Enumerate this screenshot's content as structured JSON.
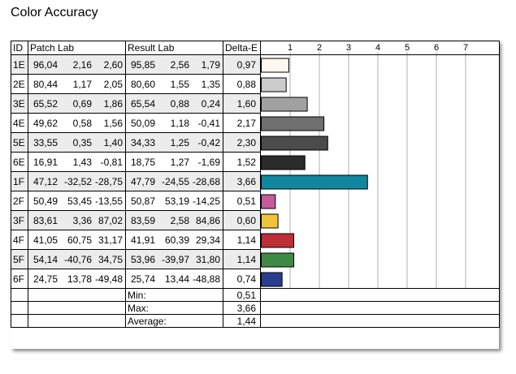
{
  "title": "Color Accuracy",
  "headers": {
    "id": "ID",
    "patch": "Patch Lab",
    "result": "Result Lab",
    "delta": "Delta-E"
  },
  "chart_data": {
    "type": "bar",
    "orientation": "horizontal",
    "xlim": [
      0,
      7
    ],
    "xticks": [
      "1",
      "2",
      "3",
      "4",
      "5",
      "6",
      "7"
    ],
    "grid": true,
    "categories": [
      "1E",
      "2E",
      "3E",
      "4E",
      "5E",
      "6E",
      "1F",
      "2F",
      "3F",
      "4F",
      "5F",
      "6F"
    ],
    "values": [
      0.97,
      0.88,
      1.6,
      2.17,
      2.3,
      1.52,
      3.66,
      0.51,
      0.6,
      1.14,
      1.14,
      0.74
    ],
    "colors": [
      "#fcf7f3",
      "#cbcbcb",
      "#a1a1a1",
      "#6f6f6f",
      "#4b4b4b",
      "#2b2b2b",
      "#11869f",
      "#c65a9c",
      "#f0c43a",
      "#bd2e37",
      "#3d8a45",
      "#283d8e"
    ]
  },
  "rows": [
    {
      "id": "1E",
      "patch": [
        "96,04",
        "2,16",
        "2,60"
      ],
      "result": [
        "95,85",
        "2,56",
        "1,79"
      ],
      "delta": "0,97"
    },
    {
      "id": "2E",
      "patch": [
        "80,44",
        "1,17",
        "2,05"
      ],
      "result": [
        "80,60",
        "1,55",
        "1,35"
      ],
      "delta": "0,88"
    },
    {
      "id": "3E",
      "patch": [
        "65,52",
        "0,69",
        "1,86"
      ],
      "result": [
        "65,54",
        "0,88",
        "0,24"
      ],
      "delta": "1,60"
    },
    {
      "id": "4E",
      "patch": [
        "49,62",
        "0,58",
        "1,56"
      ],
      "result": [
        "50,09",
        "1,18",
        "-0,41"
      ],
      "delta": "2,17"
    },
    {
      "id": "5E",
      "patch": [
        "33,55",
        "0,35",
        "1,40"
      ],
      "result": [
        "34,33",
        "1,25",
        "-0,42"
      ],
      "delta": "2,30"
    },
    {
      "id": "6E",
      "patch": [
        "16,91",
        "1,43",
        "-0,81"
      ],
      "result": [
        "18,75",
        "1,27",
        "-1,69"
      ],
      "delta": "1,52"
    },
    {
      "id": "1F",
      "patch": [
        "47,12",
        "-32,52",
        "-28,75"
      ],
      "result": [
        "47,79",
        "-24,55",
        "-28,68"
      ],
      "delta": "3,66"
    },
    {
      "id": "2F",
      "patch": [
        "50,49",
        "53,45",
        "-13,55"
      ],
      "result": [
        "50,87",
        "53,19",
        "-14,25"
      ],
      "delta": "0,51"
    },
    {
      "id": "3F",
      "patch": [
        "83,61",
        "3,36",
        "87,02"
      ],
      "result": [
        "83,59",
        "2,58",
        "84,86"
      ],
      "delta": "0,60"
    },
    {
      "id": "4F",
      "patch": [
        "41,05",
        "60,75",
        "31,17"
      ],
      "result": [
        "41,91",
        "60,39",
        "29,34"
      ],
      "delta": "1,14"
    },
    {
      "id": "5F",
      "patch": [
        "54,14",
        "-40,76",
        "34,75"
      ],
      "result": [
        "53,96",
        "-39,97",
        "31,80"
      ],
      "delta": "1,14"
    },
    {
      "id": "6F",
      "patch": [
        "24,75",
        "13,78",
        "-49,48"
      ],
      "result": [
        "25,74",
        "13,44",
        "-48,88"
      ],
      "delta": "0,74"
    }
  ],
  "stats": [
    {
      "label": "Min:",
      "value": "0,51"
    },
    {
      "label": "Max:",
      "value": "3,66"
    },
    {
      "label": "Average:",
      "value": "1,44"
    }
  ]
}
